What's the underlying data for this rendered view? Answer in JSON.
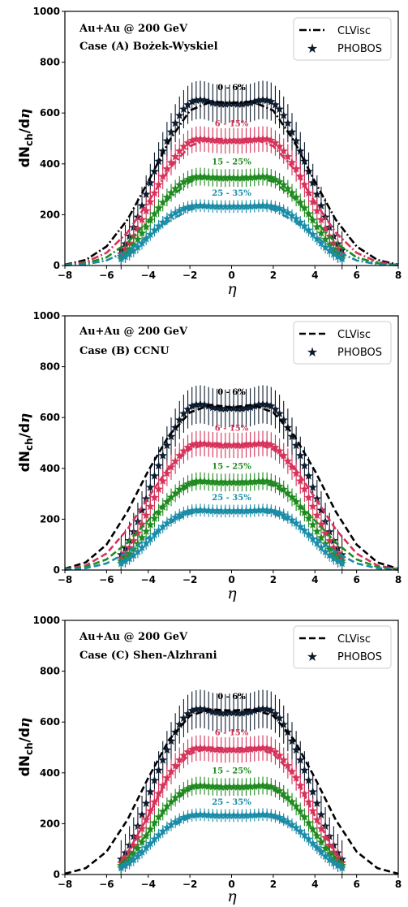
{
  "colors": {
    "c0_6": "#0d1b2e",
    "c6_15": "#d6335a",
    "c15_25": "#1f8a1f",
    "c25_35": "#1a8ca8",
    "model_line": "#000000"
  },
  "chart_data": [
    {
      "type": "line",
      "title": "",
      "xlabel": "η",
      "ylabel": "dN_ch/dη",
      "xlim": [
        -8,
        8
      ],
      "ylim": [
        0,
        1000
      ],
      "xticks": [
        "−8",
        "−6",
        "−4",
        "−2",
        "0",
        "2",
        "4",
        "6",
        "8"
      ],
      "yticks": [
        "0",
        "200",
        "400",
        "600",
        "800",
        "1000"
      ],
      "annotation_line1": "Au+Au @ 200 GeV",
      "annotation_line2": "Case (A)  Bożek-Wyskiel",
      "legend_position": "top-right",
      "legend": [
        {
          "label": "CLVisc",
          "style": "dash-dot"
        },
        {
          "label": "PHOBOS",
          "style": "star-marker"
        }
      ],
      "centrality_labels": [
        "0 - 6%",
        "6 - 15%",
        "15 - 25%",
        "25 - 35%"
      ],
      "model_curves": [
        {
          "centrality": "0 - 6%",
          "eta": [
            -8,
            -7,
            -6,
            -5,
            -4,
            -3,
            -2,
            -1,
            0,
            1,
            2,
            3,
            4,
            5,
            6,
            7,
            8
          ],
          "dndeta": [
            3,
            22,
            75,
            180,
            330,
            490,
            610,
            645,
            640,
            645,
            610,
            490,
            330,
            180,
            75,
            22,
            3
          ]
        },
        {
          "centrality": "6 - 15%",
          "eta": [
            -8,
            -7,
            -6,
            -5,
            -4,
            -3,
            -2,
            -1,
            0,
            1,
            2,
            3,
            4,
            5,
            6,
            7,
            8
          ],
          "dndeta": [
            2,
            14,
            50,
            130,
            250,
            380,
            470,
            500,
            495,
            500,
            470,
            380,
            250,
            130,
            50,
            14,
            2
          ]
        },
        {
          "centrality": "15 - 25%",
          "eta": [
            -8,
            -7,
            -6,
            -5,
            -4,
            -3,
            -2,
            -1,
            0,
            1,
            2,
            3,
            4,
            5,
            6,
            7,
            8
          ],
          "dndeta": [
            1,
            9,
            32,
            90,
            175,
            265,
            330,
            350,
            348,
            350,
            330,
            265,
            175,
            90,
            32,
            9,
            1
          ]
        },
        {
          "centrality": "25 - 35%",
          "eta": [
            -8,
            -7,
            -6,
            -5,
            -4,
            -3,
            -2,
            -1,
            0,
            1,
            2,
            3,
            4,
            5,
            6,
            7,
            8
          ],
          "dndeta": [
            1,
            5,
            20,
            58,
            115,
            175,
            220,
            236,
            235,
            236,
            220,
            175,
            115,
            58,
            20,
            5,
            1
          ]
        }
      ]
    },
    {
      "type": "line",
      "title": "",
      "xlabel": "η",
      "ylabel": "dN_ch/dη",
      "xlim": [
        -8,
        8
      ],
      "ylim": [
        0,
        1000
      ],
      "xticks": [
        "−8",
        "−6",
        "−4",
        "−2",
        "0",
        "2",
        "4",
        "6",
        "8"
      ],
      "yticks": [
        "0",
        "200",
        "400",
        "600",
        "800",
        "1000"
      ],
      "annotation_line1": "Au+Au @ 200 GeV",
      "annotation_line2": "Case (B)  CCNU",
      "legend_position": "top-right",
      "legend": [
        {
          "label": "CLVisc",
          "style": "dashed"
        },
        {
          "label": "PHOBOS",
          "style": "star-marker"
        }
      ],
      "centrality_labels": [
        "0 - 6%",
        "6 - 15%",
        "15 - 25%",
        "25 - 35%"
      ],
      "model_curves": [
        {
          "centrality": "0 - 6%",
          "eta": [
            -8,
            -7,
            -6,
            -5,
            -4,
            -3,
            -2,
            -1,
            0,
            1,
            2,
            3,
            4,
            5,
            6,
            7,
            8
          ],
          "dndeta": [
            5,
            30,
            100,
            230,
            390,
            530,
            620,
            650,
            640,
            650,
            620,
            530,
            390,
            230,
            100,
            30,
            5
          ]
        },
        {
          "centrality": "6 - 15%",
          "eta": [
            -8,
            -7,
            -6,
            -5,
            -4,
            -3,
            -2,
            -1,
            0,
            1,
            2,
            3,
            4,
            5,
            6,
            7,
            8
          ],
          "dndeta": [
            3,
            18,
            65,
            160,
            285,
            405,
            475,
            500,
            495,
            500,
            475,
            405,
            285,
            160,
            65,
            18,
            3
          ]
        },
        {
          "centrality": "15 - 25%",
          "eta": [
            -8,
            -7,
            -6,
            -5,
            -4,
            -3,
            -2,
            -1,
            0,
            1,
            2,
            3,
            4,
            5,
            6,
            7,
            8
          ],
          "dndeta": [
            2,
            12,
            42,
            108,
            195,
            280,
            332,
            350,
            348,
            350,
            332,
            280,
            195,
            108,
            42,
            12,
            2
          ]
        },
        {
          "centrality": "25 - 35%",
          "eta": [
            -8,
            -7,
            -6,
            -5,
            -4,
            -3,
            -2,
            -1,
            0,
            1,
            2,
            3,
            4,
            5,
            6,
            7,
            8
          ],
          "dndeta": [
            1,
            7,
            26,
            70,
            128,
            185,
            222,
            236,
            235,
            236,
            222,
            185,
            128,
            70,
            26,
            7,
            1
          ]
        }
      ]
    },
    {
      "type": "line",
      "title": "",
      "xlabel": "η",
      "ylabel": "dN_ch/dη",
      "xlim": [
        -8,
        8
      ],
      "ylim": [
        0,
        1000
      ],
      "xticks": [
        "−8",
        "−6",
        "−4",
        "−2",
        "0",
        "2",
        "4",
        "6",
        "8"
      ],
      "yticks": [
        "0",
        "200",
        "400",
        "600",
        "800",
        "1000"
      ],
      "annotation_line1": "Au+Au @ 200 GeV",
      "annotation_line2": "Case (C)  Shen-Alzhrani",
      "legend_position": "top-right",
      "legend": [
        {
          "label": "CLVisc",
          "style": "dashed"
        },
        {
          "label": "PHOBOS",
          "style": "star-marker"
        }
      ],
      "centrality_labels": [
        "0 - 6%",
        "6 - 15%",
        "15 - 25%",
        "25 - 35%"
      ],
      "model_curves": [
        {
          "centrality": "0 - 6%",
          "eta": [
            -8,
            -7,
            -6,
            -5,
            -4,
            -3,
            -2,
            -1,
            0,
            1,
            2,
            3,
            4,
            5,
            6,
            7,
            8
          ],
          "dndeta": [
            3,
            25,
            90,
            215,
            380,
            530,
            625,
            650,
            645,
            650,
            625,
            530,
            380,
            215,
            90,
            25,
            3
          ]
        },
        {
          "centrality": "6 - 15%",
          "eta": [
            -5.3,
            -5,
            -4,
            -3,
            -2,
            -1,
            0,
            1,
            2,
            3,
            4,
            5,
            5.3
          ],
          "dndeta": [
            55,
            85,
            230,
            390,
            475,
            500,
            495,
            500,
            475,
            390,
            230,
            85,
            55
          ]
        },
        {
          "centrality": "15 - 25%",
          "eta": [
            -5.3,
            -5,
            -4,
            -3,
            -2,
            -1,
            0,
            1,
            2,
            3,
            4,
            5,
            5.3
          ],
          "dndeta": [
            45,
            65,
            165,
            275,
            335,
            350,
            348,
            350,
            335,
            275,
            165,
            65,
            45
          ]
        },
        {
          "centrality": "25 - 35%",
          "eta": [
            -5.3,
            -5,
            -4,
            -3,
            -2,
            -1,
            0,
            1,
            2,
            3,
            4,
            5,
            5.3
          ],
          "dndeta": [
            35,
            50,
            115,
            185,
            225,
            236,
            235,
            236,
            225,
            185,
            115,
            50,
            35
          ]
        }
      ]
    }
  ],
  "phobos_data": {
    "note_shared": "PHOBOS data identical in all three panels",
    "eta": [
      -5.3,
      -5.1,
      -4.9,
      -4.7,
      -4.5,
      -4.3,
      -4.1,
      -3.9,
      -3.7,
      -3.5,
      -3.3,
      -3.1,
      -2.9,
      -2.7,
      -2.5,
      -2.3,
      -2.1,
      -1.9,
      -1.7,
      -1.5,
      -1.3,
      -1.1,
      -0.9,
      -0.7,
      -0.5,
      -0.3,
      -0.1,
      0.1,
      0.3,
      0.5,
      0.7,
      0.9,
      1.1,
      1.3,
      1.5,
      1.7,
      1.9,
      2.1,
      2.3,
      2.5,
      2.7,
      2.9,
      3.1,
      3.3,
      3.5,
      3.7,
      3.9,
      4.1,
      4.3,
      4.5,
      4.7,
      4.9,
      5.1,
      5.3
    ],
    "series": [
      {
        "centrality": "0 - 6%",
        "err": 75,
        "values": [
          60,
          85,
          115,
          150,
          190,
          235,
          280,
          325,
          370,
          410,
          450,
          490,
          525,
          560,
          590,
          615,
          632,
          645,
          650,
          652,
          650,
          645,
          640,
          638,
          635,
          635,
          637,
          637,
          635,
          635,
          638,
          640,
          645,
          650,
          652,
          650,
          645,
          632,
          615,
          590,
          560,
          525,
          490,
          450,
          410,
          370,
          325,
          280,
          235,
          190,
          150,
          115,
          85,
          60
        ]
      },
      {
        "centrality": "6 - 15%",
        "err": 50,
        "values": [
          45,
          65,
          88,
          115,
          145,
          180,
          215,
          250,
          285,
          318,
          350,
          380,
          405,
          428,
          450,
          468,
          482,
          492,
          497,
          498,
          497,
          495,
          493,
          492,
          490,
          490,
          491,
          491,
          490,
          490,
          492,
          493,
          495,
          497,
          498,
          497,
          492,
          482,
          468,
          450,
          428,
          405,
          380,
          350,
          318,
          285,
          250,
          215,
          180,
          145,
          115,
          88,
          65,
          45
        ]
      },
      {
        "centrality": "15 - 25%",
        "err": 35,
        "values": [
          35,
          48,
          63,
          82,
          103,
          127,
          152,
          178,
          203,
          226,
          248,
          268,
          286,
          302,
          317,
          329,
          338,
          345,
          349,
          350,
          349,
          347,
          346,
          345,
          344,
          344,
          345,
          345,
          344,
          344,
          345,
          346,
          347,
          349,
          350,
          349,
          345,
          338,
          329,
          317,
          302,
          286,
          268,
          248,
          226,
          203,
          178,
          152,
          127,
          103,
          82,
          63,
          48,
          35
        ]
      },
      {
        "centrality": "25 - 35%",
        "err": 25,
        "values": [
          26,
          35,
          45,
          58,
          72,
          88,
          105,
          122,
          139,
          155,
          170,
          184,
          196,
          207,
          216,
          224,
          229,
          233,
          235,
          236,
          235,
          234,
          233,
          232,
          232,
          232,
          232,
          232,
          232,
          232,
          232,
          233,
          234,
          235,
          236,
          235,
          233,
          229,
          224,
          216,
          207,
          196,
          184,
          170,
          155,
          139,
          122,
          105,
          88,
          72,
          58,
          45,
          35,
          26
        ]
      }
    ]
  }
}
